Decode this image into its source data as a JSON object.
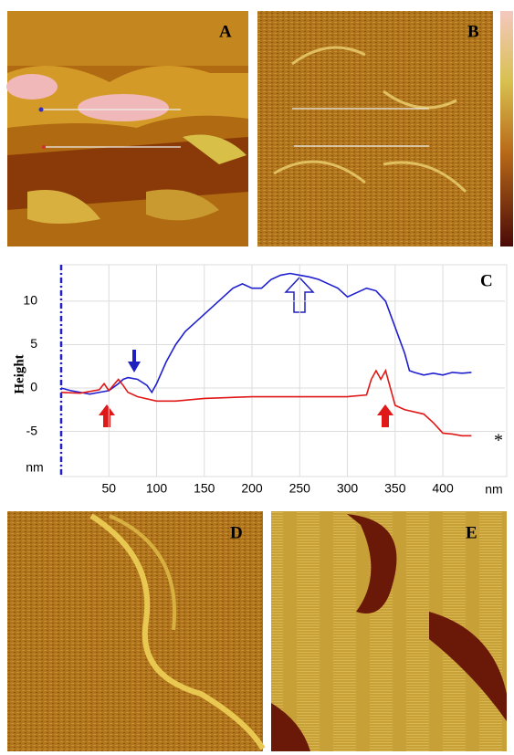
{
  "panels": {
    "a": "A",
    "b": "B",
    "d": "D",
    "e": "E"
  },
  "chart_data": {
    "type": "line",
    "panel_label": "C",
    "annotations": [
      "*"
    ],
    "y_label": "Height",
    "y_unit": "nm",
    "x_label": "nm",
    "xlim": [
      0,
      465
    ],
    "ylim": [
      -10.2,
      14.2
    ],
    "xticks": [
      50,
      100,
      150,
      200,
      250,
      300,
      350,
      400
    ],
    "yticks": [
      -5,
      0,
      5,
      10
    ],
    "grid": true,
    "series": [
      {
        "color": "#1f1fd0",
        "x": [
          0,
          10,
          20,
          30,
          40,
          50,
          60,
          65,
          70,
          80,
          90,
          95,
          100,
          110,
          120,
          130,
          140,
          150,
          160,
          170,
          180,
          190,
          200,
          210,
          220,
          230,
          240,
          250,
          260,
          270,
          280,
          290,
          300,
          310,
          320,
          330,
          340,
          350,
          360,
          365,
          370,
          380,
          390,
          400,
          410,
          420,
          430
        ],
        "values": [
          0,
          -0.3,
          -0.5,
          -0.7,
          -0.5,
          -0.3,
          0.5,
          1.0,
          1.2,
          1.0,
          0.3,
          -0.5,
          0.5,
          3,
          5,
          6.5,
          7.5,
          8.5,
          9.5,
          10.5,
          11.5,
          12,
          11.5,
          11.5,
          12.5,
          13,
          13.2,
          13,
          12.8,
          12.5,
          12,
          11.5,
          10.5,
          11,
          11.5,
          11.2,
          10,
          7,
          4,
          2,
          1.8,
          1.5,
          1.7,
          1.5,
          1.8,
          1.7,
          1.8
        ]
      },
      {
        "color": "#e01818",
        "x": [
          0,
          20,
          40,
          45,
          50,
          60,
          65,
          70,
          80,
          100,
          120,
          150,
          200,
          250,
          300,
          320,
          325,
          330,
          335,
          340,
          345,
          350,
          360,
          380,
          390,
          400,
          410,
          420,
          430
        ],
        "values": [
          -0.5,
          -0.6,
          -0.2,
          0.5,
          -0.3,
          1.0,
          0.3,
          -0.5,
          -1.0,
          -1.5,
          -1.5,
          -1.2,
          -1.0,
          -1.0,
          -1.0,
          -0.8,
          1.0,
          2.0,
          1.0,
          2.0,
          0,
          -2,
          -2.5,
          -3,
          -4,
          -5.2,
          -5.3,
          -5.5,
          -5.5
        ]
      }
    ]
  }
}
